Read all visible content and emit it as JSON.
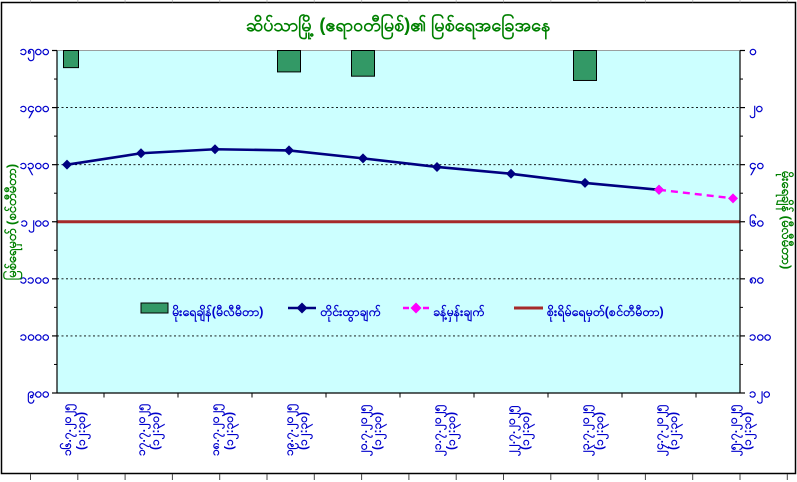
{
  "chart_data": {
    "type": "combo-bar-line",
    "title": "ဆိပ်သာမြို့ (ဧရာဝတီမြစ်)၏ မြစ်ရေအခြေအနေ",
    "x": {
      "dates": [
        "၁၆.၇.၂၀၂၅",
        "၁၇.၇.၂၀၂၅",
        "၁၈.၇.၂၀၂၅",
        "၁၉.၇.၂၀၂၅",
        "၂၀.၇.၂၀၂၅",
        "၂၁.၇.၂၀၂၅",
        "၂၂.၇.၂၀၂၅",
        "၂၃.၇.၂၀၂၅",
        "၂၄.၇.၂၀၂၅",
        "၂၅.၇.၂၀၂၅"
      ],
      "dates_latin": [
        "16.7.2025",
        "17.7.2025",
        "18.7.2025",
        "19.7.2025",
        "20.7.2025",
        "21.7.2025",
        "22.7.2025",
        "23.7.2025",
        "24.7.2025",
        "25.7.2025"
      ],
      "time_label": "(၁၂:၃၀)",
      "time_label_latin": "(12:30)"
    },
    "left_axis": {
      "title": "မြစ်ရေမှတ် (စင်တီမီတာ)",
      "min": 900,
      "max": 1500,
      "step": 100,
      "tick_values": [
        1500,
        1400,
        1300,
        1200,
        1100,
        1000,
        900
      ],
      "tick_labels": [
        "၁၅၀၀",
        "၁၄၀၀",
        "၁၃၀၀",
        "၁၂၀၀",
        "၁၁၀၀",
        "၁၀၀၀",
        "၉၀၀"
      ]
    },
    "right_axis": {
      "title": "မိုးရေချိန် (မီလီမီတာ)",
      "min": 0,
      "max": 120,
      "step": 20,
      "zero_at_top": true,
      "tick_values": [
        0,
        20,
        40,
        60,
        80,
        100,
        120
      ],
      "tick_labels": [
        "၀",
        "၂၀",
        "၄၀",
        "၆၀",
        "၈၀",
        "၁၀၀",
        "၁၂၀"
      ]
    },
    "series": [
      {
        "name": "မိုးရေချိန်(မီလီမီတာ)",
        "type": "bar",
        "axis": "right",
        "values": [
          6,
          null,
          null,
          7.5,
          9,
          null,
          null,
          10.5,
          null,
          null
        ]
      },
      {
        "name": "တိုင်းထွာချက်",
        "type": "line",
        "axis": "left",
        "style": "solid",
        "marker": "diamond",
        "values": [
          1300,
          1320,
          1327,
          1325,
          1311,
          1296,
          1284,
          1268,
          1256,
          null
        ]
      },
      {
        "name": "ခန့်မှန်းချက်",
        "type": "line",
        "axis": "left",
        "style": "dashed",
        "marker": "diamond",
        "values": [
          null,
          null,
          null,
          null,
          null,
          null,
          null,
          null,
          1256,
          1241
        ]
      },
      {
        "name": "စိုးရိမ်ရေမှတ်(စင်တီမီတာ)",
        "type": "reference-line",
        "axis": "left",
        "value": 1200
      }
    ],
    "legend": {
      "position": "inside-bottom"
    },
    "colors": {
      "bar_fill": "#339966",
      "bar_border": "#000000",
      "observed_line": "#000080",
      "forecast_line": "#FF00FF",
      "danger_line": "#A52A2A",
      "plot_background": "#CCFFFF",
      "tick_label": "#0000CC",
      "axis_title": "#008000",
      "title": "#008000",
      "gridline": "#000000",
      "frame": "#000000"
    }
  }
}
